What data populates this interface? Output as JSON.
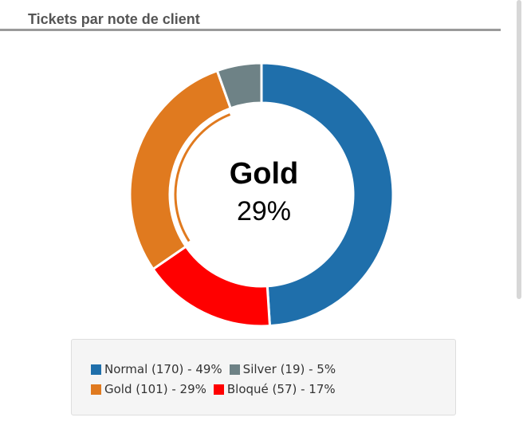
{
  "panel": {
    "title": "Tickets par note de client"
  },
  "chart_data": {
    "type": "pie",
    "style": "donut",
    "title": "",
    "slices": [
      {
        "label": "Normal",
        "count": 170,
        "percent": 49,
        "color": "#1f6fab",
        "legend_text": "Normal (170) - 49%"
      },
      {
        "label": "Bloqué",
        "count": 57,
        "percent": 17,
        "color": "#ff0000",
        "legend_text": "Bloqué (57) - 17%"
      },
      {
        "label": "Gold",
        "count": 101,
        "percent": 29,
        "color": "#e07a1f",
        "legend_text": "Gold (101) - 29%"
      },
      {
        "label": "Silver",
        "count": 19,
        "percent": 5,
        "color": "#6e8286",
        "legend_text": "Silver (19) - 5%"
      }
    ],
    "highlighted": {
      "label": "Gold",
      "percent_text": "29%"
    },
    "legend_placement": "bottom"
  }
}
